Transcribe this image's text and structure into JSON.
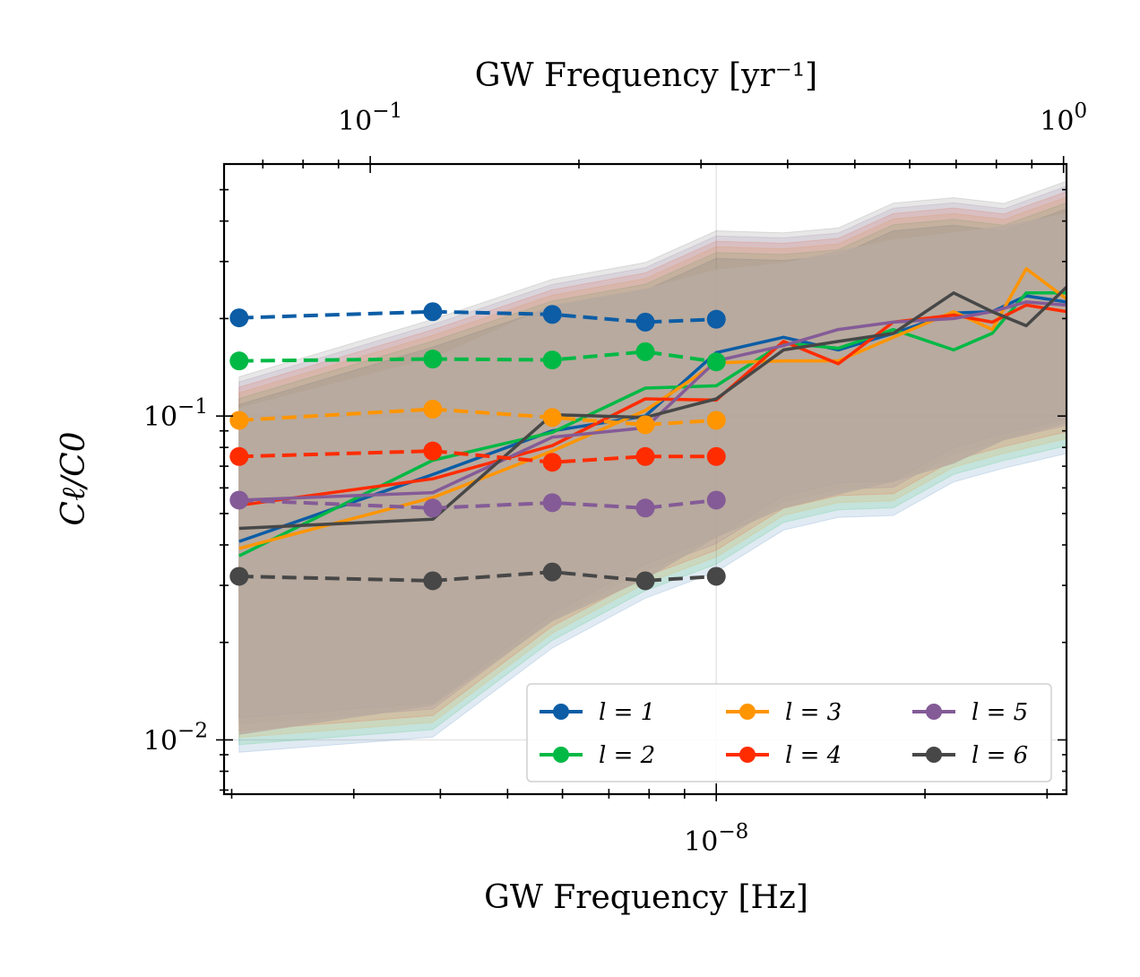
{
  "chart_data": {
    "type": "line",
    "xscale": "log",
    "yscale": "log",
    "xlabel": "GW Frequency [Hz]",
    "ylabel": "Cℓ/C0",
    "top_xlabel": "GW Frequency [yr⁻¹]",
    "xlim": [
      1.95e-09,
      3.2e-08
    ],
    "ylim": [
      0.0068,
      0.6
    ],
    "yr_per_hz": 31560000.0,
    "x_ticks": [
      {
        "value": 1e-08,
        "base": "10",
        "exp": "−8"
      }
    ],
    "top_ticks": [
      {
        "value": 0.1,
        "base": "10",
        "exp": "−1"
      },
      {
        "value": 1.0,
        "base": "10",
        "exp": "0"
      }
    ],
    "y_ticks": [
      {
        "value": 0.01,
        "base": "10",
        "exp": "−2"
      },
      {
        "value": 0.1,
        "base": "10",
        "exp": "−1"
      }
    ],
    "colors": [
      "#0c5da5",
      "#00b945",
      "#ff9500",
      "#ff2c00",
      "#845b97",
      "#474747"
    ],
    "band_fill": "#b8aaa0",
    "band_x": [
      2.05e-09,
      3.9e-09,
      5.8e-09,
      7.9e-09,
      1e-08,
      1.25e-08,
      1.5e-08,
      1.8e-08,
      2.2e-08,
      2.6e-08,
      3.2e-08
    ],
    "band_low": [
      0.0096,
      0.0118,
      0.0215,
      0.029,
      0.039,
      0.048,
      0.053,
      0.058,
      0.066,
      0.078,
      0.088
    ],
    "band_high": [
      0.118,
      0.168,
      0.245,
      0.275,
      0.315,
      0.33,
      0.36,
      0.39,
      0.41,
      0.43,
      0.47
    ],
    "dashed_x": [
      2.05e-09,
      3.9e-09,
      5.8e-09,
      7.9e-09,
      1e-08
    ],
    "solid_x": [
      2.05e-09,
      3.9e-09,
      5.8e-09,
      7.9e-09,
      1e-08,
      1.25e-08,
      1.5e-08,
      1.8e-08,
      2.2e-08,
      2.5e-08,
      2.8e-08,
      3.2e-08
    ],
    "series": [
      {
        "name": "l = 1",
        "dashed": [
          0.201,
          0.21,
          0.206,
          0.195,
          0.199
        ],
        "solid": [
          0.041,
          0.066,
          0.09,
          0.1,
          0.157,
          0.175,
          0.16,
          0.18,
          0.208,
          0.21,
          0.235,
          0.225
        ]
      },
      {
        "name": "l = 2",
        "dashed": [
          0.148,
          0.15,
          0.149,
          0.158,
          0.147
        ],
        "solid": [
          0.037,
          0.073,
          0.089,
          0.122,
          0.124,
          0.168,
          0.162,
          0.185,
          0.16,
          0.18,
          0.24,
          0.24
        ]
      },
      {
        "name": "l = 3",
        "dashed": [
          0.097,
          0.105,
          0.099,
          0.094,
          0.097
        ],
        "solid": [
          0.039,
          0.056,
          0.078,
          0.104,
          0.146,
          0.148,
          0.148,
          0.175,
          0.21,
          0.185,
          0.285,
          0.23
        ]
      },
      {
        "name": "l = 4",
        "dashed": [
          0.075,
          0.078,
          0.072,
          0.075,
          0.075
        ],
        "solid": [
          0.053,
          0.064,
          0.081,
          0.113,
          0.112,
          0.17,
          0.145,
          0.195,
          0.205,
          0.195,
          0.22,
          0.21
        ]
      },
      {
        "name": "l = 5",
        "dashed": [
          0.055,
          0.052,
          0.054,
          0.052,
          0.055
        ],
        "solid": [
          0.055,
          0.058,
          0.086,
          0.092,
          0.148,
          0.165,
          0.185,
          0.195,
          0.2,
          0.21,
          0.225,
          0.22
        ]
      },
      {
        "name": "l = 6",
        "dashed": [
          0.032,
          0.031,
          0.033,
          0.031,
          0.032
        ],
        "solid": [
          0.045,
          0.048,
          0.101,
          0.099,
          0.113,
          0.16,
          0.17,
          0.18,
          0.24,
          0.21,
          0.19,
          0.25
        ]
      }
    ],
    "legend": {
      "placement": "lower-right",
      "columns": 3,
      "entries": [
        "l = 1",
        "l = 2",
        "l = 3",
        "l = 4",
        "l = 5",
        "l = 6"
      ]
    }
  }
}
